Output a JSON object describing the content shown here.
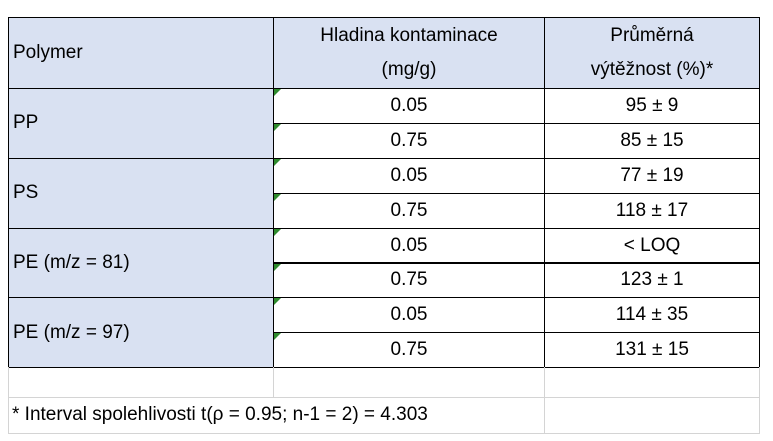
{
  "table": {
    "header": [
      [
        "Polymer"
      ],
      [
        "Hladina kontaminace",
        "(mg/g)"
      ],
      [
        "Průměrná",
        "výtěžnost (%)*"
      ]
    ],
    "groups": [
      {
        "polymer": "PP",
        "rows": [
          [
            "0.05",
            "95 ± 9"
          ],
          [
            "0.75",
            "85 ± 15"
          ]
        ]
      },
      {
        "polymer": "PS",
        "rows": [
          [
            "0.05",
            "77 ± 19"
          ],
          [
            "0.75",
            "118 ± 17"
          ]
        ]
      },
      {
        "polymer": "PE (m/z = 81)",
        "rows": [
          [
            "0.05",
            "< LOQ"
          ],
          [
            "0.75",
            "123 ± 1"
          ]
        ]
      },
      {
        "polymer": "PE (m/z = 97)",
        "rows": [
          [
            "0.05",
            "114 ± 35"
          ],
          [
            "0.75",
            "131 ± 15"
          ]
        ]
      }
    ],
    "footnote": "* Interval spolehlivosti t(ρ = 0.95; n-1 = 2) = 4.303"
  }
}
